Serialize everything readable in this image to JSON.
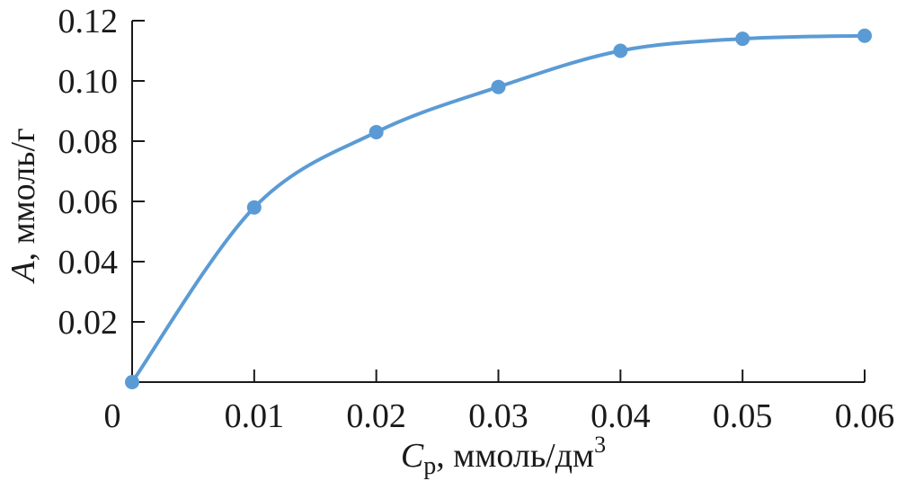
{
  "chart_data": {
    "type": "line",
    "title": "",
    "xlabel": {
      "symbol": "C",
      "subscript": "р",
      "rest": ", ммоль/дм",
      "superscript": "3"
    },
    "ylabel": {
      "symbol": "A",
      "rest": ", ммоль/г"
    },
    "xlim": [
      0,
      0.06
    ],
    "ylim": [
      0,
      0.12
    ],
    "x_ticks": [
      0,
      0.01,
      0.02,
      0.03,
      0.04,
      0.05,
      0.06
    ],
    "x_tick_labels": [
      "0",
      "0.01",
      "0.02",
      "0.03",
      "0.04",
      "0.05",
      "0.06"
    ],
    "y_ticks": [
      0.02,
      0.04,
      0.06,
      0.08,
      0.1,
      0.12
    ],
    "y_tick_labels": [
      "0.02",
      "0.04",
      "0.06",
      "0.08",
      "0.10",
      "0.12"
    ],
    "grid": false,
    "series": [
      {
        "x": [
          0,
          0.01,
          0.02,
          0.03,
          0.04,
          0.05,
          0.06
        ],
        "y": [
          0,
          0.058,
          0.083,
          0.098,
          0.11,
          0.114,
          0.115
        ],
        "color": "#5b9bd5",
        "marker": "circle",
        "smooth": true
      }
    ]
  }
}
